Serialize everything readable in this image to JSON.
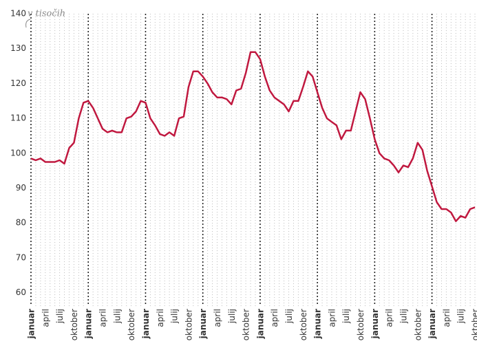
{
  "chart_data": {
    "type": "line",
    "annotation": "v tisočih",
    "categories": [
      "januar",
      null,
      null,
      "april",
      null,
      null,
      "julij",
      null,
      null,
      "oktober",
      null,
      null,
      "januar",
      null,
      null,
      "april",
      null,
      null,
      "julij",
      null,
      null,
      "oktober",
      null,
      null,
      "januar",
      null,
      null,
      "april",
      null,
      null,
      "julij",
      null,
      null,
      "oktober",
      null,
      null,
      "januar",
      null,
      null,
      "april",
      null,
      null,
      "julij",
      null,
      null,
      "oktober",
      null,
      null,
      "januar",
      null,
      null,
      "april",
      null,
      null,
      "julij",
      null,
      null,
      "oktober",
      null,
      null,
      "januar",
      null,
      null,
      "april",
      null,
      null,
      "julij",
      null,
      null,
      "oktober",
      null,
      null,
      "januar",
      null,
      null,
      "april",
      null,
      null,
      "julij",
      null,
      null,
      "oktober",
      null,
      null,
      "januar",
      null,
      null,
      "april",
      null,
      null,
      "julij",
      null,
      null,
      "oktober"
    ],
    "series": [
      {
        "name": null,
        "color": "#c0183f",
        "values": [
          98.5,
          98,
          98.5,
          97.5,
          97.5,
          97.5,
          98,
          97,
          101.5,
          103,
          110,
          114.5,
          115,
          113,
          110,
          107,
          106,
          106.5,
          106,
          106,
          110,
          110.5,
          112,
          115,
          114.5,
          110,
          108,
          105.5,
          105,
          106,
          105,
          110,
          110.5,
          119,
          123.5,
          123.5,
          122,
          120,
          117.5,
          116,
          116,
          115.5,
          114,
          118,
          118.5,
          123,
          129,
          129,
          127,
          122,
          118,
          116,
          115,
          114,
          112,
          115,
          115,
          119,
          123.5,
          122,
          117.5,
          113,
          110,
          109,
          108,
          104,
          106.5,
          106.5,
          112,
          117.5,
          115.5,
          110,
          104,
          100,
          98.5,
          98,
          96.5,
          94.5,
          96.5,
          96,
          98.5,
          103,
          101,
          95,
          90.5,
          86,
          84,
          84,
          83,
          80.5,
          82,
          81.5,
          84,
          84.5
        ]
      }
    ],
    "ylim": [
      55,
      140
    ],
    "yticks": [
      60,
      70,
      80,
      90,
      100,
      110,
      120,
      130,
      140
    ],
    "grid": true
  }
}
